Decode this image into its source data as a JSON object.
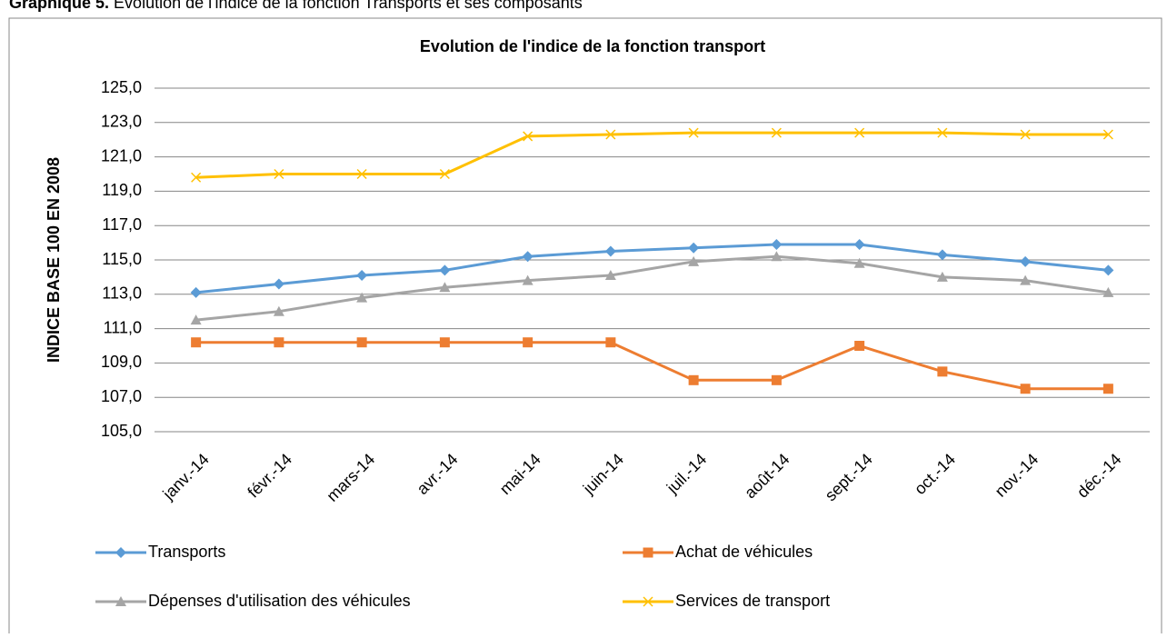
{
  "caption": {
    "number": "Graphique 5.",
    "text": "Evolution de l'indice de la fonction Transports et ses composants"
  },
  "chart_data": {
    "type": "line",
    "title": "Evolution de l'indice de la fonction transport",
    "y_label": "INDICE BASE 100 EN 2008",
    "categories": [
      "janv.-14",
      "févr.-14",
      "mars-14",
      "avr.-14",
      "mai-14",
      "juin-14",
      "juil.-14",
      "août-14",
      "sept.-14",
      "oct.-14",
      "nov.-14",
      "déc.-14"
    ],
    "series": [
      {
        "name": "Transports",
        "color": "#5b9bd5",
        "marker": "diamond",
        "values": [
          113.1,
          113.6,
          114.1,
          114.4,
          115.2,
          115.5,
          115.7,
          115.9,
          115.9,
          115.3,
          114.9,
          114.4
        ]
      },
      {
        "name": "Achat de véhicules",
        "color": "#ed7d31",
        "marker": "square",
        "values": [
          110.2,
          110.2,
          110.2,
          110.2,
          110.2,
          110.2,
          108.0,
          108.0,
          110.0,
          108.5,
          107.5,
          107.5
        ]
      },
      {
        "name": "Dépenses d'utilisation des véhicules",
        "color": "#a5a5a5",
        "marker": "triangle",
        "values": [
          111.5,
          112.0,
          112.8,
          113.4,
          113.8,
          114.1,
          114.9,
          115.2,
          114.8,
          114.0,
          113.8,
          113.1
        ]
      },
      {
        "name": "Services de transport",
        "color": "#ffc000",
        "marker": "x",
        "values": [
          119.8,
          120.0,
          120.0,
          120.0,
          122.2,
          122.3,
          122.4,
          122.4,
          122.4,
          122.4,
          122.3,
          122.3
        ]
      }
    ],
    "ylim": [
      105,
      125
    ],
    "yticks": [
      {
        "value": 105,
        "label": "105,0"
      },
      {
        "value": 107,
        "label": "107,0"
      },
      {
        "value": 109,
        "label": "109,0"
      },
      {
        "value": 111,
        "label": "111,0"
      },
      {
        "value": 113,
        "label": "113,0"
      },
      {
        "value": 115,
        "label": "115,0"
      },
      {
        "value": 117,
        "label": "117,0"
      },
      {
        "value": 119,
        "label": "119,0"
      },
      {
        "value": 121,
        "label": "121,0"
      },
      {
        "value": 123,
        "label": "123,0"
      },
      {
        "value": 125,
        "label": "125,0"
      }
    ],
    "grid": true,
    "legend": "bottom"
  }
}
